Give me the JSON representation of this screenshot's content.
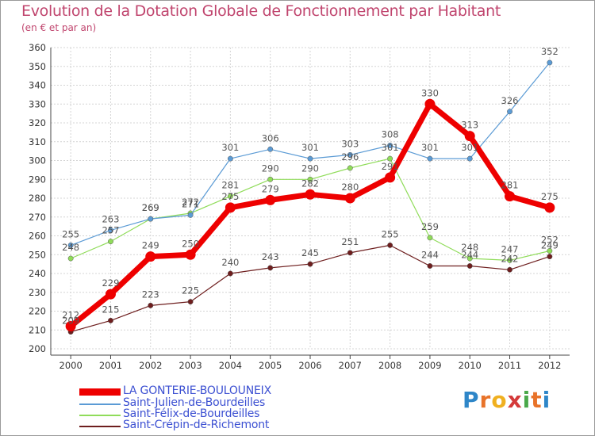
{
  "header": {
    "title": "Evolution de la Dotation Globale de Fonctionnement par Habitant",
    "subtitle": "(en € et par an)"
  },
  "logo": {
    "letters": [
      "P",
      "r",
      "o",
      "x",
      "i",
      "t",
      "i"
    ],
    "colors": [
      "#2e86c8",
      "#e8732a",
      "#f0b020",
      "#d43a3a",
      "#4aa84a",
      "#e8732a",
      "#2e86c8"
    ]
  },
  "chart_data": {
    "type": "line",
    "title": "Evolution de la Dotation Globale de Fonctionnement par Habitant",
    "subtitle": "(en € et par an)",
    "xlabel": "",
    "ylabel": "",
    "ylim": [
      200,
      360
    ],
    "yticks": [
      200,
      210,
      220,
      230,
      240,
      250,
      260,
      270,
      280,
      290,
      300,
      310,
      320,
      330,
      340,
      350,
      360
    ],
    "grid": true,
    "x": [
      2000,
      2001,
      2002,
      2003,
      2004,
      2005,
      2006,
      2007,
      2008,
      2009,
      2010,
      2011,
      2012
    ],
    "series": [
      {
        "name": "LA GONTERIE-BOULOUNEIX",
        "color": "#ee0000",
        "values": [
          212,
          229,
          249,
          250,
          275,
          279,
          282,
          280,
          291,
          330,
          313,
          281,
          275
        ],
        "labels": [
          "212",
          "229",
          "249",
          "250",
          "275",
          "279",
          "282",
          "280",
          "291",
          "330",
          "313",
          "281",
          "275"
        ]
      },
      {
        "name": "Saint-Julien-de-Bourdeilles",
        "color": "#5b9bd5",
        "values": [
          255,
          263,
          269,
          271,
          301,
          306,
          301,
          303,
          308,
          301,
          301,
          326,
          352
        ],
        "labels": [
          "255",
          "263",
          "269",
          "271",
          "301",
          "306",
          "301",
          "303",
          "308",
          "301",
          "301",
          "326",
          "352"
        ]
      },
      {
        "name": "Saint-Félix-de-Bourdeilles",
        "color": "#90dc5a",
        "values": [
          248,
          257,
          269,
          272,
          281,
          290,
          290,
          296,
          301,
          259,
          248,
          247,
          252
        ],
        "labels": [
          "248",
          "257",
          "269",
          "272",
          "281",
          "290",
          "290",
          "296",
          "301",
          "259",
          "248",
          "247",
          "252"
        ]
      },
      {
        "name": "Saint-Crépin-de-Richemont",
        "color": "#6e1e1e",
        "values": [
          209,
          215,
          223,
          225,
          240,
          243,
          245,
          251,
          255,
          244,
          244,
          242,
          249
        ],
        "labels": [
          "209",
          "215",
          "223",
          "225",
          "240",
          "243",
          "245",
          "251",
          "255",
          "244",
          "244",
          "242",
          "249"
        ]
      }
    ],
    "legend": "bottom-left"
  }
}
